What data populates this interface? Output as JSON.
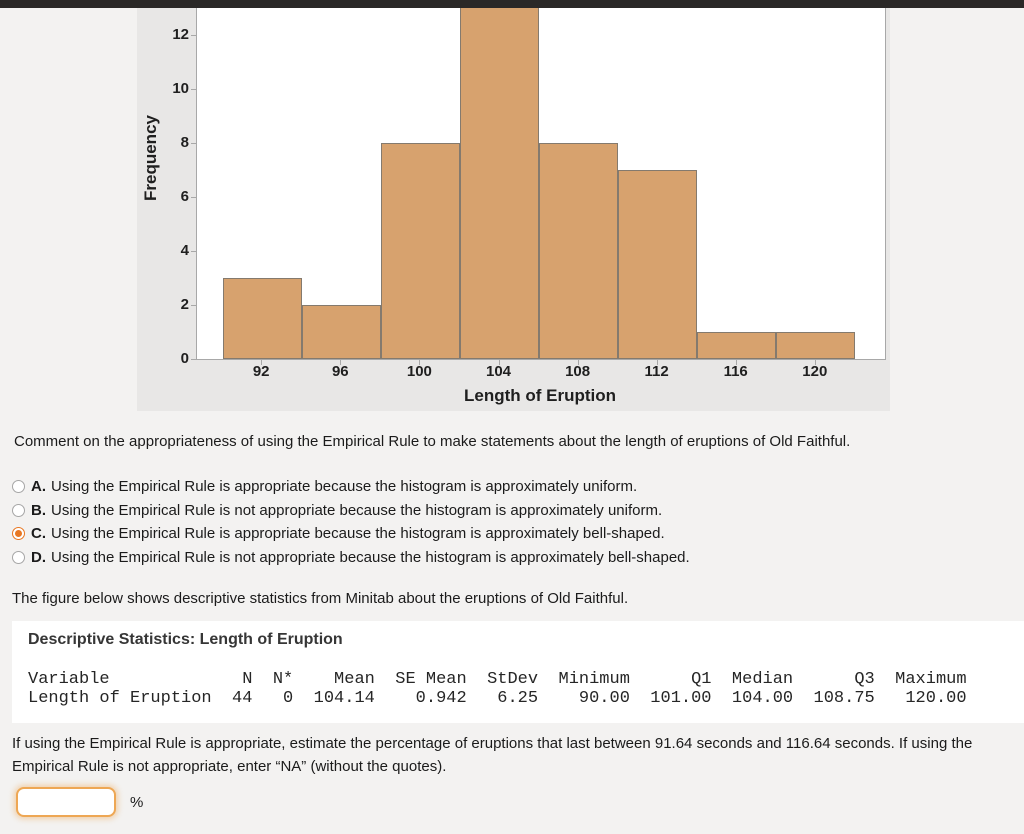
{
  "style": {
    "page_bg": "#f3f2f1",
    "panel_bg": "#e8e7e6",
    "top_bar": "#2a2827",
    "plot_frame": "#a8a8a8",
    "bar_fill": "#d7a26e",
    "bar_border": "#847a6e",
    "accent_orange": "#e87722",
    "input_border": "#eea754",
    "text_color": "#1b1b1b"
  },
  "chart_data": {
    "type": "bar",
    "subtype": "histogram",
    "title": "",
    "xlabel": "Length of Eruption",
    "ylabel": "Frequency",
    "bin_edges": [
      90,
      94,
      98,
      102,
      106,
      110,
      114,
      118,
      122
    ],
    "values": [
      3,
      2,
      8,
      14,
      8,
      7,
      1,
      1
    ],
    "x_ticks": [
      92,
      96,
      100,
      104,
      108,
      112,
      116,
      120
    ],
    "y_ticks": [
      0,
      2,
      4,
      6,
      8,
      10,
      12
    ],
    "x_range": [
      88.7,
      123.5
    ],
    "y_range": [
      0,
      13.3
    ],
    "grid": false,
    "legend": false
  },
  "question1": "Comment on the appropriateness of using the Empirical Rule to make statements about the length of eruptions of Old Faithful.",
  "options": [
    {
      "letter": "A.",
      "text": "Using the Empirical Rule is appropriate because the histogram is approximately uniform.",
      "selected": false
    },
    {
      "letter": "B.",
      "text": "Using the Empirical Rule is not appropriate because the histogram is approximately uniform.",
      "selected": false
    },
    {
      "letter": "C.",
      "text": "Using the Empirical Rule is appropriate because the histogram is approximately bell-shaped.",
      "selected": true
    },
    {
      "letter": "D.",
      "text": "Using the Empirical Rule is not appropriate because the histogram is approximately bell-shaped.",
      "selected": false
    }
  ],
  "question2": "The figure below shows descriptive statistics from Minitab about the eruptions of Old Faithful.",
  "minitab": {
    "title": "Descriptive Statistics: Length of Eruption",
    "columns": [
      "Variable",
      "N",
      "N*",
      "Mean",
      "SE Mean",
      "StDev",
      "Minimum",
      "Q1",
      "Median",
      "Q3",
      "Maximum"
    ],
    "row": [
      "Length of Eruption",
      "44",
      "0",
      "104.14",
      "0.942",
      "6.25",
      "90.00",
      "101.00",
      "104.00",
      "108.75",
      "120.00"
    ],
    "lines": [
      "Variable             N  N*    Mean  SE Mean  StDev  Minimum      Q1  Median      Q3  Maximum",
      "Length of Eruption  44   0  104.14    0.942   6.25    90.00  101.00  104.00  108.75   120.00"
    ]
  },
  "question3": {
    "lines": [
      "If using the Empirical Rule is appropriate, estimate the percentage of eruptions that last between 91.64 seconds and 116.64 seconds. If using the",
      "Empirical Rule is not appropriate, enter “NA” (without the quotes)."
    ]
  },
  "answer": {
    "value": "",
    "unit": "%"
  }
}
